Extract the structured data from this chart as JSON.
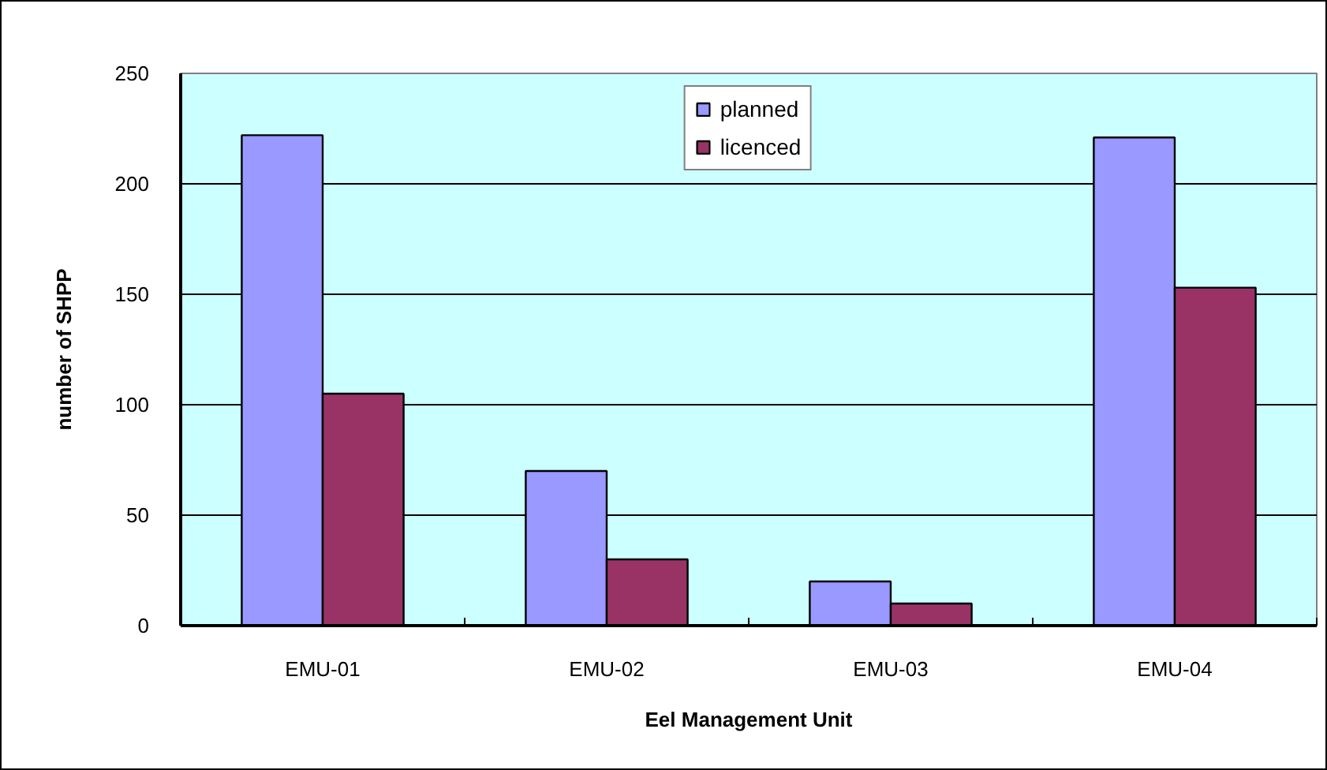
{
  "chart_data": {
    "type": "bar",
    "categories": [
      "EMU-01",
      "EMU-02",
      "EMU-03",
      "EMU-04"
    ],
    "series": [
      {
        "name": "planned",
        "color": "#9999ff",
        "values": [
          222,
          70,
          20,
          221
        ]
      },
      {
        "name": "licenced",
        "color": "#993366",
        "values": [
          105,
          30,
          10,
          153
        ]
      }
    ],
    "xlabel": "Eel Management Unit",
    "ylabel": "number of SHPP",
    "ylim": [
      0,
      250
    ],
    "yticks": [
      0,
      50,
      100,
      150,
      200,
      250
    ],
    "grid": "y",
    "legend": "top"
  }
}
